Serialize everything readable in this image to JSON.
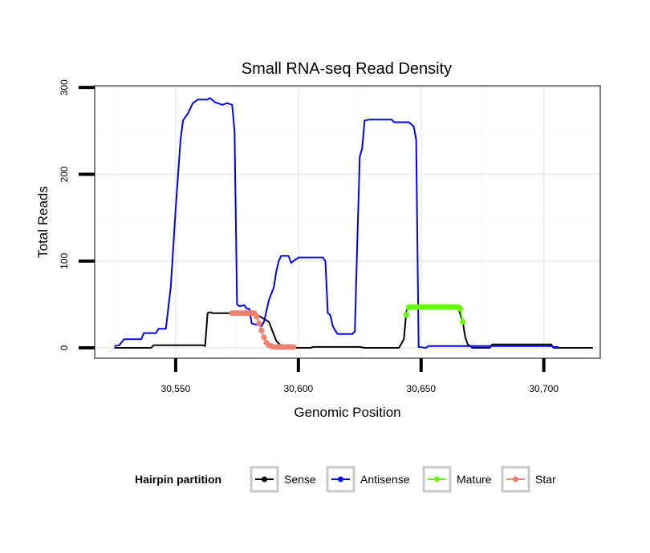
{
  "chart_data": {
    "type": "line",
    "title": "Small RNA-seq Read Density",
    "xlabel": "Genomic Position",
    "ylabel": "Total Reads",
    "xlim": [
      30517,
      30723
    ],
    "ylim": [
      -12,
      302
    ],
    "xticks": [
      30550,
      30600,
      30650,
      30700
    ],
    "xtick_labels": [
      "30,550",
      "30,600",
      "30,650",
      "30,700"
    ],
    "yticks": [
      0,
      100,
      200,
      300
    ],
    "ytick_labels": [
      "0",
      "100",
      "200",
      "300"
    ],
    "grid": true,
    "legend_position": "bottom",
    "legend_title": "Hairpin partition",
    "series": [
      {
        "name": "Sense",
        "color": "#000000",
        "markers": false,
        "points": [
          [
            30525,
            0
          ],
          [
            30540,
            0
          ],
          [
            30541,
            3
          ],
          [
            30550,
            3
          ],
          [
            30561,
            3
          ],
          [
            30562,
            2
          ],
          [
            30563,
            40
          ],
          [
            30564,
            41
          ],
          [
            30565,
            40
          ],
          [
            30573,
            40
          ],
          [
            30582,
            40
          ],
          [
            30588,
            30
          ],
          [
            30591,
            8
          ],
          [
            30593,
            2
          ],
          [
            30595,
            0
          ],
          [
            30598,
            0
          ],
          [
            30605,
            0
          ],
          [
            30606,
            1
          ],
          [
            30625,
            1
          ],
          [
            30627,
            0
          ],
          [
            30641,
            0
          ],
          [
            30643,
            10
          ],
          [
            30644,
            42
          ],
          [
            30645,
            47
          ],
          [
            30665,
            47
          ],
          [
            30667,
            30
          ],
          [
            30668,
            12
          ],
          [
            30669,
            4
          ],
          [
            30671,
            0
          ],
          [
            30678,
            0
          ],
          [
            30679,
            4
          ],
          [
            30703,
            4
          ],
          [
            30704,
            0
          ],
          [
            30720,
            0
          ]
        ]
      },
      {
        "name": "Antisense",
        "color": "#0000ff",
        "markers": false,
        "points": [
          [
            30525,
            2
          ],
          [
            30527,
            3
          ],
          [
            30529,
            10
          ],
          [
            30531,
            10
          ],
          [
            30536,
            10
          ],
          [
            30537,
            17
          ],
          [
            30542,
            17
          ],
          [
            30543,
            22
          ],
          [
            30546,
            22
          ],
          [
            30548,
            70
          ],
          [
            30550,
            160
          ],
          [
            30552,
            240
          ],
          [
            30553,
            262
          ],
          [
            30555,
            270
          ],
          [
            30557,
            282
          ],
          [
            30559,
            286
          ],
          [
            30563,
            286
          ],
          [
            30564,
            288
          ],
          [
            30566,
            283
          ],
          [
            30569,
            280
          ],
          [
            30571,
            282
          ],
          [
            30573,
            280
          ],
          [
            30574,
            250
          ],
          [
            30575,
            50
          ],
          [
            30576,
            48
          ],
          [
            30578,
            49
          ],
          [
            30579,
            45
          ],
          [
            30580,
            45
          ],
          [
            30581,
            28
          ],
          [
            30584,
            26
          ],
          [
            30585,
            25
          ],
          [
            30586,
            30
          ],
          [
            30588,
            55
          ],
          [
            30590,
            70
          ],
          [
            30591,
            88
          ],
          [
            30592,
            100
          ],
          [
            30593,
            106
          ],
          [
            30596,
            106
          ],
          [
            30597,
            98
          ],
          [
            30598,
            100
          ],
          [
            30600,
            104
          ],
          [
            30610,
            104
          ],
          [
            30611,
            100
          ],
          [
            30612,
            40
          ],
          [
            30613,
            38
          ],
          [
            30614,
            25
          ],
          [
            30615,
            20
          ],
          [
            30616,
            16
          ],
          [
            30622,
            16
          ],
          [
            30623,
            19
          ],
          [
            30624,
            120
          ],
          [
            30625,
            220
          ],
          [
            30626,
            230
          ],
          [
            30627,
            262
          ],
          [
            30629,
            263
          ],
          [
            30638,
            263
          ],
          [
            30639,
            260
          ],
          [
            30645,
            260
          ],
          [
            30647,
            255
          ],
          [
            30648,
            240
          ],
          [
            30649,
            1
          ],
          [
            30652,
            0
          ],
          [
            30653,
            2
          ],
          [
            30660,
            2
          ],
          [
            30700,
            2
          ],
          [
            30703,
            2
          ],
          [
            30704,
            1
          ],
          [
            30706,
            1
          ]
        ]
      },
      {
        "name": "Mature",
        "color": "#66ff00",
        "markers": true,
        "points": [
          [
            30644,
            38
          ],
          [
            30645,
            47
          ],
          [
            30646,
            47
          ],
          [
            30647,
            47
          ],
          [
            30648,
            47
          ],
          [
            30649,
            47
          ],
          [
            30650,
            47
          ],
          [
            30651,
            47
          ],
          [
            30652,
            47
          ],
          [
            30653,
            47
          ],
          [
            30654,
            47
          ],
          [
            30655,
            47
          ],
          [
            30656,
            47
          ],
          [
            30657,
            47
          ],
          [
            30658,
            47
          ],
          [
            30659,
            47
          ],
          [
            30660,
            47
          ],
          [
            30661,
            47
          ],
          [
            30662,
            47
          ],
          [
            30663,
            47
          ],
          [
            30664,
            47
          ],
          [
            30665,
            47
          ],
          [
            30666,
            45
          ],
          [
            30667,
            30
          ]
        ]
      },
      {
        "name": "Star",
        "color": "#f08070",
        "markers": true,
        "points": [
          [
            30573,
            40
          ],
          [
            30574,
            40
          ],
          [
            30575,
            40
          ],
          [
            30576,
            40
          ],
          [
            30577,
            40
          ],
          [
            30578,
            40
          ],
          [
            30579,
            40
          ],
          [
            30580,
            40
          ],
          [
            30581,
            40
          ],
          [
            30582,
            40
          ],
          [
            30583,
            36
          ],
          [
            30584,
            28
          ],
          [
            30585,
            20
          ],
          [
            30586,
            12
          ],
          [
            30587,
            6
          ],
          [
            30588,
            3
          ],
          [
            30589,
            2
          ],
          [
            30590,
            1
          ],
          [
            30591,
            1
          ],
          [
            30592,
            1
          ],
          [
            30593,
            1
          ],
          [
            30594,
            1
          ],
          [
            30595,
            1
          ],
          [
            30596,
            1
          ],
          [
            30597,
            1
          ],
          [
            30598,
            1
          ]
        ]
      }
    ]
  }
}
